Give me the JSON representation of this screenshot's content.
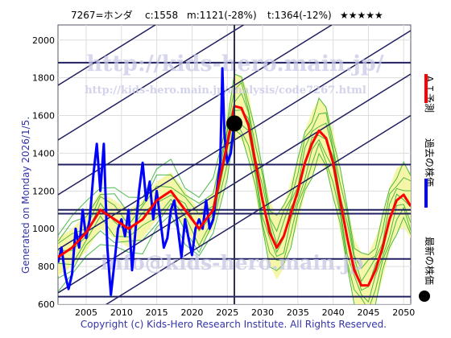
{
  "header": {
    "ticker": "7267=ホンダ",
    "current": "c:1558",
    "mean": "m:1121(-28%)",
    "target": "t:1364(-12%)",
    "stars": "★★★★★"
  },
  "side_label": "Generated on Monday 2026/1/5.",
  "watermarks": {
    "main": "http://kids-hero.main.jp/",
    "sub": "http://kids-hero.main.jp/analysis/code7267.html",
    "email": "info@kids-hero.main.jp"
  },
  "legend": {
    "ai_forecast": "ＡＩ予測",
    "past_price": "過去の株価",
    "latest_price": "最新の株価"
  },
  "footer": "Copyright (c) Kids-Hero Research Institute. All Rights Reserved.",
  "colors": {
    "ai_line": "#ff0000",
    "past_line": "#0000ff",
    "latest_dot": "#000000",
    "band_fill": "#f5f59a",
    "scenario": "#22aa22",
    "channel": "#202060",
    "header_text": "#000000",
    "footer_text": "#3333aa"
  },
  "chart_data": {
    "type": "line",
    "xlim": [
      2001,
      2051
    ],
    "ylim": [
      600,
      2080
    ],
    "x_ticks": [
      2005,
      2010,
      2015,
      2020,
      2025,
      2030,
      2035,
      2040,
      2045,
      2050
    ],
    "y_ticks": [
      600,
      800,
      1000,
      1200,
      1400,
      1600,
      1800,
      2000
    ],
    "latest": {
      "x": 2026.0,
      "y": 1558
    },
    "channel_lines": [
      {
        "x1": 2001,
        "y1": 1760,
        "x2": 2051,
        "y2": 2920
      },
      {
        "x1": 2001,
        "y1": 1470,
        "x2": 2051,
        "y2": 2630
      },
      {
        "x1": 2001,
        "y1": 1180,
        "x2": 2051,
        "y2": 2340
      },
      {
        "x1": 2001,
        "y1": 890,
        "x2": 2051,
        "y2": 2050
      },
      {
        "x1": 2001,
        "y1": 660,
        "x2": 2051,
        "y2": 1820
      },
      {
        "x1": 2001,
        "y1": 440,
        "x2": 2051,
        "y2": 1600
      }
    ],
    "horizontal_levels": [
      1880,
      1340,
      1100,
      1080,
      840,
      640
    ],
    "series": [
      {
        "name": "過去の株価",
        "x": [
          2001.0,
          2001.5,
          2002.0,
          2002.5,
          2003.0,
          2003.5,
          2004.0,
          2004.5,
          2005.0,
          2005.5,
          2006.0,
          2006.5,
          2007.0,
          2007.5,
          2008.0,
          2008.5,
          2009.0,
          2009.5,
          2010.0,
          2010.5,
          2011.0,
          2011.5,
          2012.0,
          2012.5,
          2013.0,
          2013.5,
          2014.0,
          2014.5,
          2015.0,
          2015.5,
          2016.0,
          2016.5,
          2017.0,
          2017.5,
          2018.0,
          2018.5,
          2019.0,
          2019.5,
          2020.0,
          2020.5,
          2021.0,
          2021.5,
          2022.0,
          2022.5,
          2023.0,
          2023.5,
          2024.0,
          2024.3,
          2024.6,
          2025.0,
          2025.5,
          2026.0
        ],
        "y": [
          820,
          900,
          760,
          680,
          760,
          1000,
          900,
          1100,
          950,
          1050,
          1280,
          1450,
          1200,
          1450,
          900,
          650,
          820,
          1000,
          1050,
          960,
          1100,
          780,
          1000,
          1200,
          1350,
          1150,
          1250,
          1050,
          1200,
          1050,
          900,
          950,
          1100,
          1150,
          1000,
          850,
          1050,
          950,
          860,
          1000,
          1050,
          1000,
          1150,
          1000,
          1050,
          1200,
          1350,
          1850,
          1500,
          1350,
          1400,
          1558
        ]
      },
      {
        "name": "ＡＩ予測",
        "x": [
          2001,
          2003,
          2005,
          2007,
          2009,
          2011,
          2013,
          2015,
          2017,
          2019,
          2021,
          2023,
          2025,
          2026,
          2027,
          2028,
          2029,
          2030,
          2031,
          2032,
          2033,
          2034,
          2035,
          2036,
          2037,
          2038,
          2039,
          2040,
          2041,
          2042,
          2043,
          2044,
          2045,
          2046,
          2047,
          2048,
          2049,
          2050,
          2051
        ],
        "y": [
          850,
          900,
          980,
          1100,
          1050,
          1000,
          1050,
          1150,
          1200,
          1100,
          1000,
          1100,
          1450,
          1650,
          1640,
          1550,
          1350,
          1150,
          980,
          900,
          960,
          1080,
          1200,
          1350,
          1450,
          1520,
          1480,
          1350,
          1150,
          950,
          780,
          700,
          700,
          780,
          900,
          1050,
          1150,
          1180,
          1120
        ]
      }
    ]
  }
}
